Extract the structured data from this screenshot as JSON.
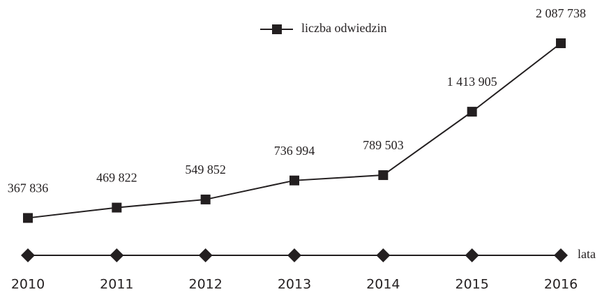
{
  "chart_data": {
    "type": "line",
    "categories": [
      "2010",
      "2011",
      "2012",
      "2013",
      "2014",
      "2015",
      "2016"
    ],
    "series": [
      {
        "name": "liczba odwiedzin",
        "color": "#231f20",
        "values": [
          367836,
          469822,
          549852,
          736994,
          789503,
          1413905,
          2087738
        ],
        "value_labels": [
          "367 836",
          "469 822",
          "549 852",
          "736 994",
          "789 503",
          "1 413 905",
          "2 087 738"
        ]
      }
    ],
    "x_label": "lata",
    "legend": "top"
  }
}
